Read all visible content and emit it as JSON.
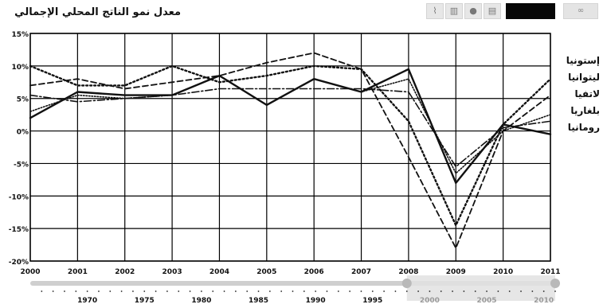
{
  "title": "معدل نمو الناتج المحلي الإجمالي",
  "toolbar": {
    "icons": [
      "line-chart-icon",
      "bar-chart-icon",
      "globe-icon",
      "table-icon"
    ],
    "icon_glyphs": [
      "⌇",
      "▥",
      "●",
      "▤"
    ],
    "link_label": "∞"
  },
  "chart_data": {
    "type": "line",
    "categories": [
      "2000",
      "2001",
      "2002",
      "2003",
      "2004",
      "2005",
      "2006",
      "2007",
      "2008",
      "2009",
      "2010",
      "2011"
    ],
    "ylim": [
      -20,
      15
    ],
    "yticks": [
      15,
      10,
      5,
      0,
      -5,
      -10,
      -15,
      -20
    ],
    "ytick_labels": [
      "15%",
      "10%",
      "5%",
      "0%",
      "-5%",
      "-10%",
      "-15%",
      "-20%"
    ],
    "grid": true,
    "legend_position": "right",
    "series": [
      {
        "name": "إستونيا",
        "style": "solid",
        "values": [
          2,
          6,
          5.5,
          5.5,
          8.5,
          4,
          8,
          6,
          9.5,
          -8,
          1,
          -0.5
        ]
      },
      {
        "name": "ليتوانيا",
        "style": "dotted",
        "values": [
          10,
          7,
          7,
          10,
          7.5,
          8.5,
          10,
          9.5,
          1.5,
          -14.5,
          1,
          8
        ]
      },
      {
        "name": "لاتفيا",
        "style": "dashed",
        "values": [
          7,
          8,
          6.5,
          7.5,
          8.5,
          10.5,
          12,
          9.5,
          -4,
          -18,
          0,
          5.5
        ]
      },
      {
        "name": "بلغاريا",
        "style": "dashdot",
        "values": [
          5.5,
          4.5,
          5,
          5.5,
          6.5,
          6.5,
          6.5,
          6.5,
          6,
          -5.5,
          0.5,
          1.5
        ]
      },
      {
        "name": "رومانيا",
        "style": "dense-dotted",
        "values": [
          3,
          5.5,
          5,
          5.5,
          8.5,
          4,
          8,
          6,
          8,
          -6.5,
          0,
          2.5
        ]
      }
    ]
  },
  "timeline": {
    "ticks": [
      "1970",
      "1975",
      "1980",
      "1985",
      "1990",
      "1995",
      "2000",
      "2005",
      "2010"
    ],
    "window_values": [
      1998,
      2011
    ],
    "range": [
      1965,
      2011
    ]
  }
}
